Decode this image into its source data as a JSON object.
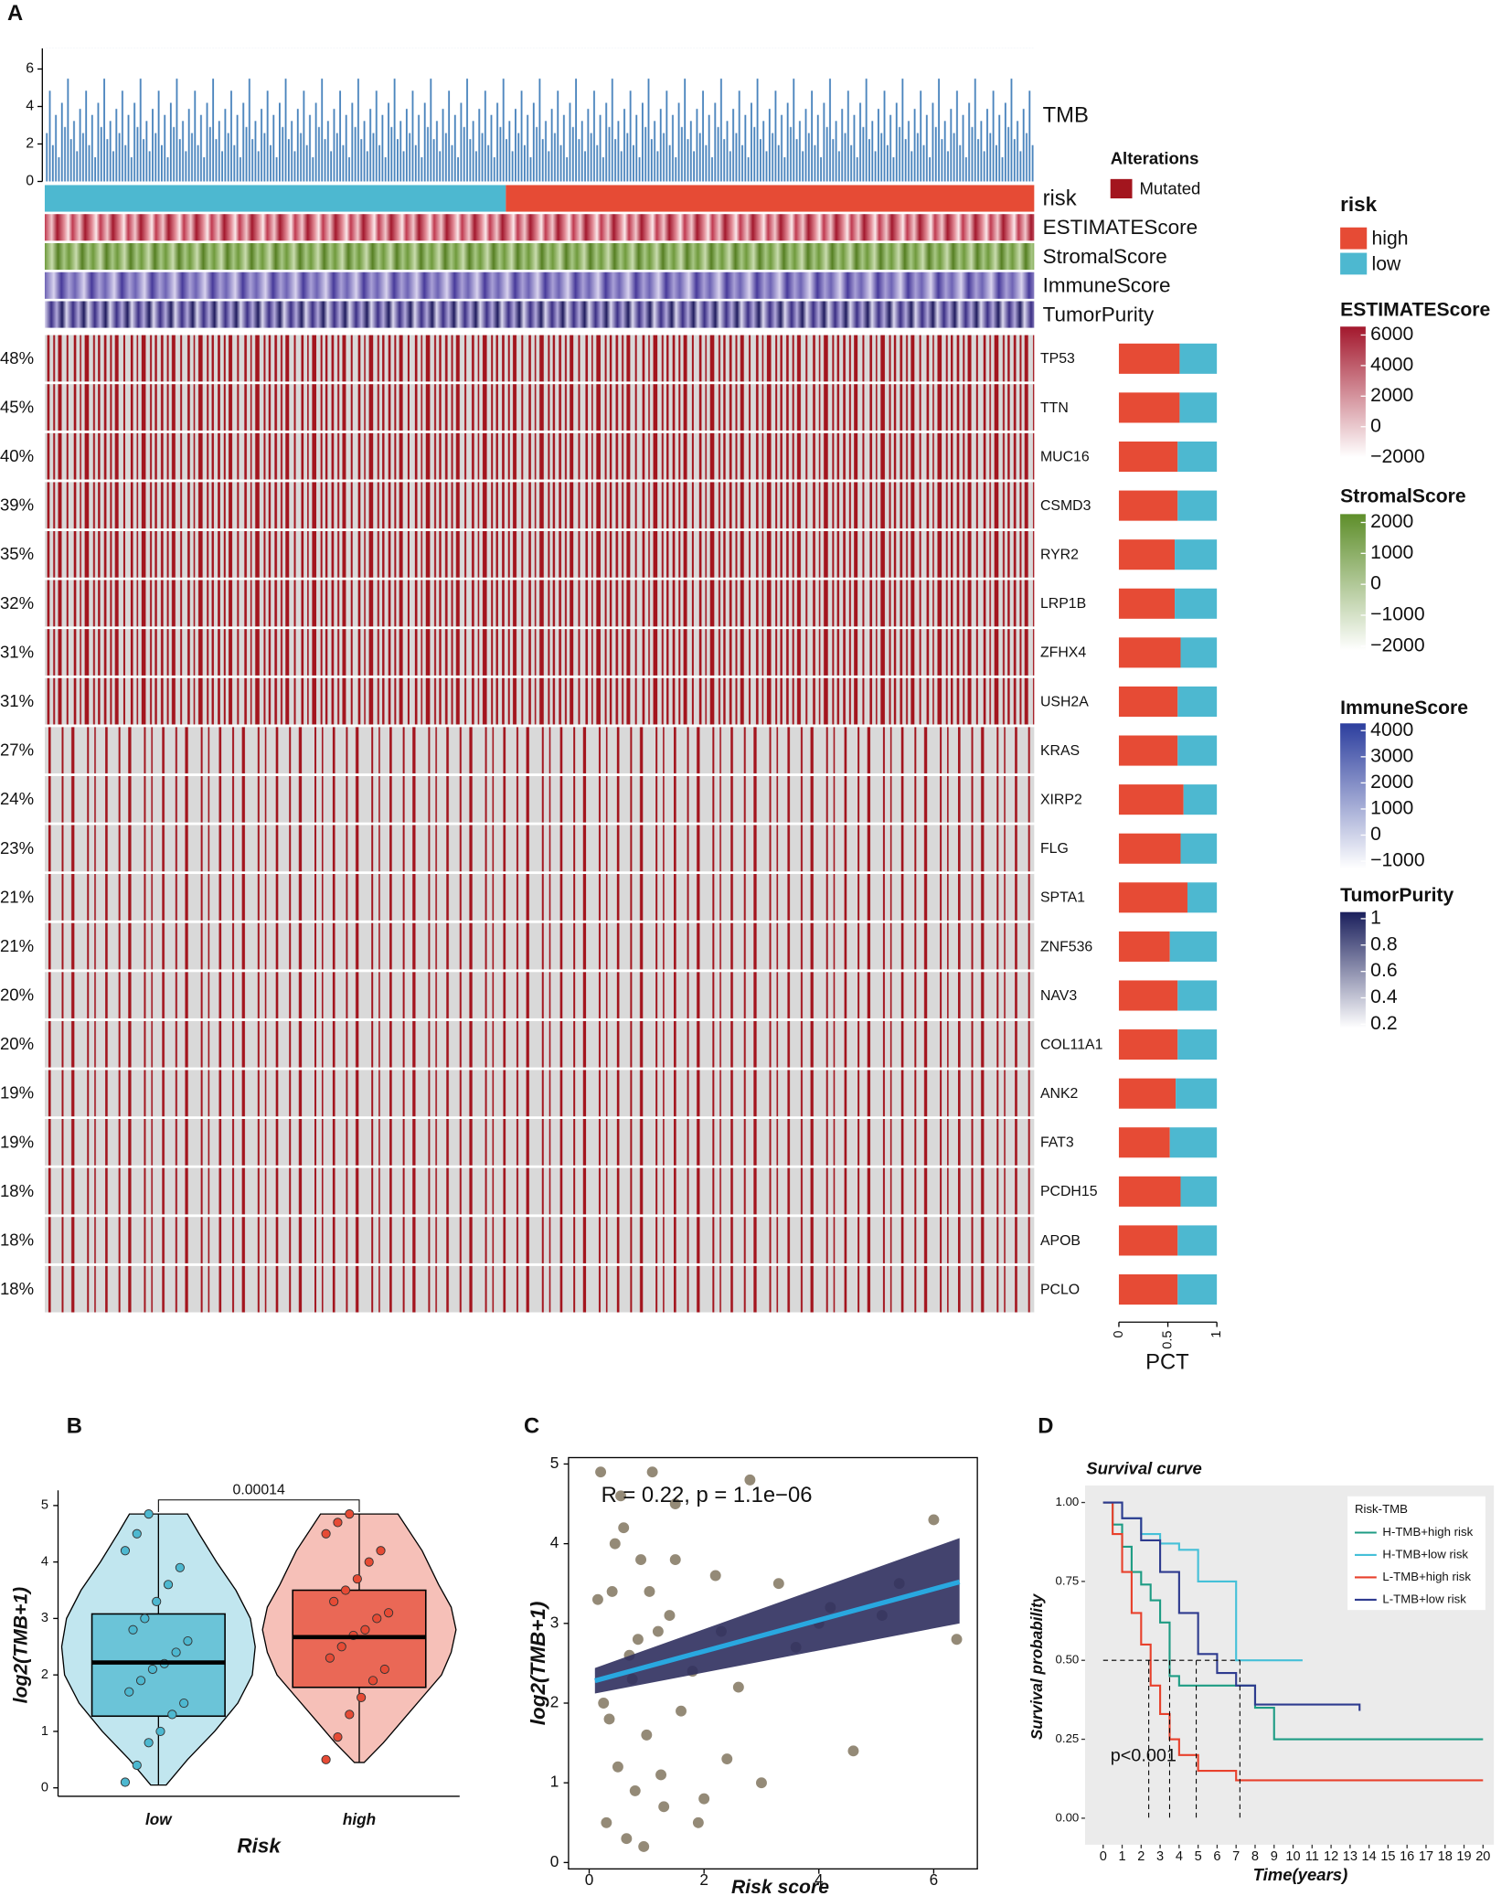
{
  "chart_data": [
    {
      "type": "oncoplot",
      "panel": "A",
      "tmb": {
        "label": "TMB",
        "ylim": [
          0,
          7.1
        ],
        "yticks": [
          0,
          2,
          4,
          6
        ]
      },
      "risk": {
        "title": "risk",
        "low_percent": 46.6,
        "groups": [
          {
            "name": "high",
            "color": "#e64b35"
          },
          {
            "name": "low",
            "color": "#4db8d0"
          }
        ]
      },
      "alterations": {
        "title": "Alterations",
        "name": "Mutated",
        "color": "#a3151e"
      },
      "scales": [
        {
          "name": "ESTIMATEScore",
          "colors": [
            "#ffffff",
            "#a3182d"
          ],
          "lim": [
            -2000,
            6550
          ],
          "ticks": [
            6000,
            4000,
            2000,
            0,
            {
              "value": -2000,
              "label": "−2000"
            }
          ]
        },
        {
          "name": "StromalScore",
          "colors": [
            "#ffffff",
            "#5e8e2a"
          ],
          "lim": [
            -2150,
            2270
          ],
          "ticks": [
            2000,
            1000,
            0,
            {
              "value": -1000,
              "label": "−1000"
            },
            {
              "value": -2000,
              "label": "−2000"
            }
          ]
        },
        {
          "name": "ImmuneScore",
          "colors": [
            "#ffffff",
            "#2c3e9e"
          ],
          "lim": [
            -1280,
            4280
          ],
          "ticks": [
            4000,
            3000,
            2000,
            1000,
            0,
            {
              "value": -1000,
              "label": "−1000"
            }
          ]
        },
        {
          "name": "TumorPurity",
          "colors": [
            "#ffffff",
            "#1a1f5c"
          ],
          "lim": [
            0.17,
            1.05
          ],
          "ticks": [
            1,
            0.8,
            0.6,
            0.4,
            0.2
          ]
        }
      ],
      "genes": [
        "TP53",
        "TTN",
        "MUC16",
        "CSMD3",
        "RYR2",
        "LRP1B",
        "ZFHX4",
        "USH2A",
        "KRAS",
        "XIRP2",
        "FLG",
        "SPTA1",
        "ZNF536",
        "NAV3",
        "COL11A1",
        "ANK2",
        "FAT3",
        "PCDH15",
        "APOB",
        "PCLO"
      ],
      "values": [
        48,
        45,
        40,
        39,
        35,
        32,
        31,
        31,
        27,
        24,
        23,
        21,
        21,
        20,
        20,
        19,
        19,
        18,
        18,
        18
      ],
      "value_labels": [
        "48%",
        "45%",
        "40%",
        "39%",
        "35%",
        "32%",
        "31%",
        "31%",
        "27%",
        "24%",
        "23%",
        "21%",
        "21%",
        "20%",
        "20%",
        "19%",
        "19%",
        "18%",
        "18%",
        "18%"
      ],
      "pct": {
        "xlabel": "PCT",
        "xlim": [
          0,
          1
        ],
        "xticks": [
          0,
          0.5,
          1
        ],
        "high": [
          0.62,
          0.62,
          0.6,
          0.6,
          0.57,
          0.57,
          0.63,
          0.6,
          0.6,
          0.66,
          0.63,
          0.7,
          0.52,
          0.6,
          0.6,
          0.58,
          0.52,
          0.63,
          0.6,
          0.6
        ],
        "low": [
          0.38,
          0.38,
          0.4,
          0.4,
          0.43,
          0.43,
          0.37,
          0.4,
          0.4,
          0.34,
          0.37,
          0.3,
          0.48,
          0.4,
          0.4,
          0.42,
          0.48,
          0.37,
          0.4,
          0.4
        ]
      }
    },
    {
      "type": "violin",
      "panel": "B",
      "xlabel": "Risk",
      "ylabel": "log2(TMB+1)",
      "ylim": [
        -0.15,
        5.27
      ],
      "yticks": [
        0,
        1,
        2,
        3,
        4,
        5
      ],
      "p_value": 0.00014,
      "groups": [
        {
          "name": "low",
          "color": "#4db8d0",
          "box": {
            "min": 0.05,
            "q1": 1.27,
            "median": 2.22,
            "q3": 3.08,
            "max": 4.85
          },
          "density": {
            "y": [
              0.05,
              0.5,
              1,
              1.5,
              2,
              2.5,
              3,
              3.5,
              4,
              4.5,
              4.85
            ],
            "width": [
              0.08,
              0.3,
              0.58,
              0.82,
              0.97,
              1,
              0.95,
              0.8,
              0.6,
              0.42,
              0.3
            ]
          },
          "points": [
            0.1,
            0.4,
            0.8,
            1.0,
            1.3,
            1.5,
            1.7,
            1.9,
            2.1,
            2.2,
            2.4,
            2.6,
            2.8,
            3.0,
            3.3,
            3.6,
            3.9,
            4.2,
            4.5,
            4.85
          ]
        },
        {
          "name": "high",
          "color": "#e64b35",
          "box": {
            "min": 0.45,
            "q1": 1.78,
            "median": 2.67,
            "q3": 3.5,
            "max": 4.85
          },
          "density": {
            "y": [
              0.45,
              0.8,
              1.2,
              1.6,
              2,
              2.4,
              2.8,
              3.2,
              3.6,
              4.2,
              4.85
            ],
            "width": [
              0.05,
              0.25,
              0.45,
              0.65,
              0.85,
              0.95,
              1,
              0.95,
              0.82,
              0.65,
              0.4
            ]
          },
          "points": [
            0.5,
            0.9,
            1.3,
            1.6,
            1.9,
            2.1,
            2.3,
            2.5,
            2.7,
            2.8,
            3.0,
            3.1,
            3.3,
            3.5,
            3.7,
            4.0,
            4.2,
            4.5,
            4.7,
            4.85
          ]
        }
      ]
    },
    {
      "type": "scatter",
      "panel": "C",
      "xlabel": "Risk score",
      "ylabel": "log2(TMB+1)",
      "annotation": "R = 0.22, p = 1.1e−06",
      "xlim": [
        -0.36,
        6.76
      ],
      "xticks": [
        0,
        2,
        4,
        6
      ],
      "ylim": [
        -0.08,
        5.08
      ],
      "yticks": [
        0,
        1,
        2,
        3,
        4,
        5
      ],
      "color": "#948a77",
      "fit_color": "#29a8e0",
      "band_color": "#2f2f5e",
      "x": [
        0.2,
        0.3,
        0.4,
        0.5,
        0.6,
        0.7,
        0.8,
        0.9,
        1.0,
        1.1,
        1.2,
        1.3,
        1.4,
        1.5,
        1.6,
        1.8,
        2.0,
        2.2,
        2.4,
        2.6,
        2.8,
        3.0,
        3.3,
        3.6,
        4.0,
        4.2,
        4.6,
        5.1,
        5.4,
        6.0,
        6.4,
        0.25,
        0.45,
        0.65,
        0.85,
        1.05,
        1.25,
        0.35,
        0.55,
        0.75,
        1.5,
        1.9,
        2.3,
        0.15,
        0.95
      ],
      "values": [
        4.9,
        0.5,
        3.4,
        1.2,
        4.2,
        2.6,
        0.9,
        3.8,
        1.6,
        4.9,
        2.9,
        0.7,
        3.1,
        4.5,
        1.9,
        2.4,
        0.8,
        3.6,
        1.3,
        2.2,
        4.8,
        1.0,
        3.5,
        2.7,
        3.0,
        3.2,
        1.4,
        3.1,
        3.5,
        4.3,
        2.8,
        2.0,
        4.0,
        0.3,
        2.8,
        3.4,
        1.1,
        1.8,
        4.6,
        2.3,
        3.8,
        0.5,
        2.9,
        3.3,
        0.2
      ],
      "fit": {
        "x": [
          0.1,
          6.45
        ],
        "y": [
          2.28,
          3.52
        ],
        "lower": [
          2.12,
          3.0
        ],
        "upper": [
          2.44,
          4.07
        ]
      }
    },
    {
      "type": "survival",
      "panel": "D",
      "title": "Survival curve",
      "legend_title": "Risk-TMB",
      "annotation": "p<0.001",
      "xlabel": "Time(years)",
      "ylabel": "Survival probability",
      "xlim": [
        -0.955,
        20.57
      ],
      "xticks": [
        0,
        1,
        2,
        3,
        4,
        5,
        6,
        7,
        8,
        9,
        10,
        11,
        12,
        13,
        14,
        15,
        16,
        17,
        18,
        19,
        20
      ],
      "ylim": [
        -0.084,
        1.054
      ],
      "yticks": [
        {
          "value": 0,
          "label": "0.00"
        },
        {
          "value": 0.25,
          "label": "0.25"
        },
        {
          "value": 0.5,
          "label": "0.50"
        },
        {
          "value": 0.75,
          "label": "0.75"
        },
        {
          "value": 1,
          "label": "1.00"
        }
      ],
      "median_survival": 0.5,
      "median_times": [
        2.4,
        3.5,
        4.9,
        7.2
      ],
      "series": [
        {
          "name": "H-TMB+high risk",
          "color": "#1e9c84",
          "x": [
            0,
            0.5,
            1,
            1.5,
            2,
            2.5,
            3,
            3.5,
            4,
            5,
            7,
            8,
            9,
            20
          ],
          "values": [
            1,
            0.93,
            0.86,
            0.78,
            0.74,
            0.69,
            0.62,
            0.45,
            0.42,
            0.42,
            0.42,
            0.35,
            0.25,
            0.25
          ]
        },
        {
          "name": "H-TMB+low risk",
          "color": "#45c0d8",
          "x": [
            0,
            1,
            2,
            3,
            4,
            5,
            6,
            7,
            10.5
          ],
          "values": [
            1,
            0.95,
            0.9,
            0.87,
            0.85,
            0.75,
            0.75,
            0.5,
            0.5
          ]
        },
        {
          "name": "L-TMB+high risk",
          "color": "#e8412c",
          "x": [
            0,
            0.5,
            1,
            1.5,
            2,
            2.5,
            3,
            3.5,
            4,
            5,
            7,
            20
          ],
          "values": [
            1,
            0.9,
            0.78,
            0.65,
            0.55,
            0.42,
            0.33,
            0.25,
            0.2,
            0.15,
            0.12,
            0.12
          ]
        },
        {
          "name": "L-TMB+low risk",
          "color": "#2e3b8f",
          "x": [
            0,
            1,
            2,
            3,
            4,
            5,
            6,
            7,
            8,
            13.5
          ],
          "values": [
            1,
            0.95,
            0.88,
            0.78,
            0.65,
            0.52,
            0.46,
            0.42,
            0.36,
            0.34
          ]
        }
      ]
    }
  ]
}
